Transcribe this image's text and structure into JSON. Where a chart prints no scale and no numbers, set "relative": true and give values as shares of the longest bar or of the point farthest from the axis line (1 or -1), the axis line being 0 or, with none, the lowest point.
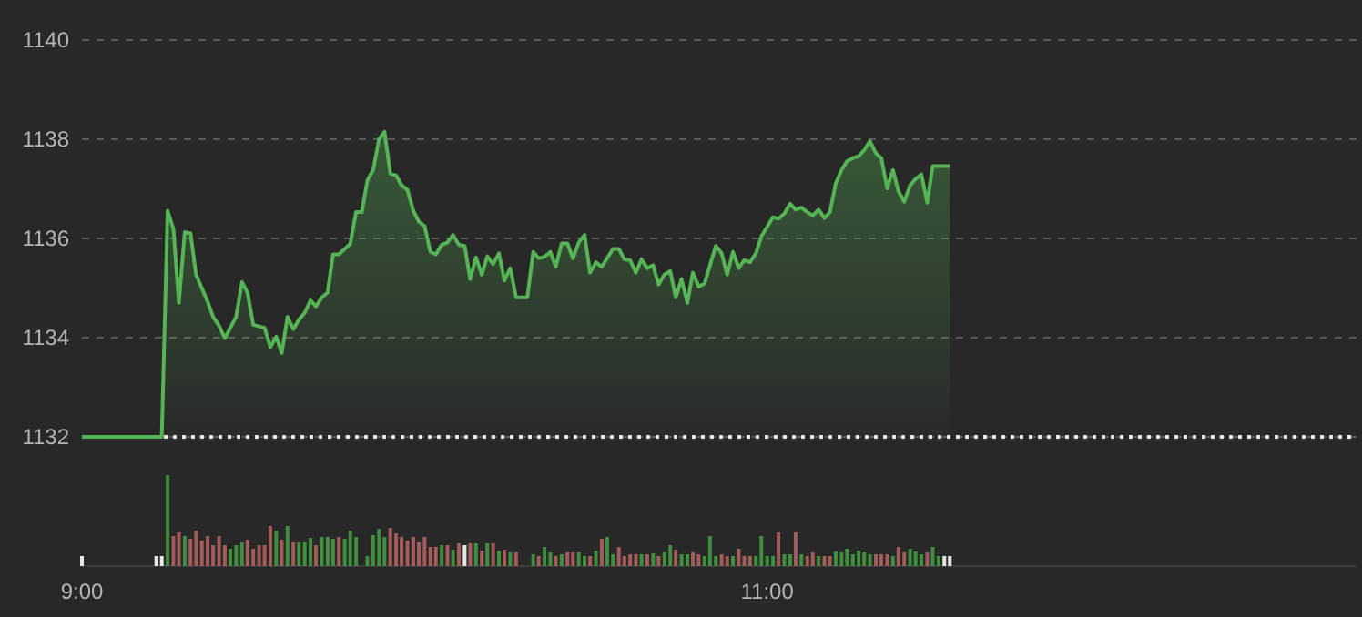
{
  "chart_data": [
    {
      "type": "area",
      "xlim": [
        9,
        12.72
      ],
      "ylim": [
        1132,
        1140
      ],
      "yticks": [
        1132,
        1134,
        1136,
        1138,
        1140
      ],
      "grid": "y",
      "tick_labels": "y",
      "color": "#55b555",
      "ref_lines": [
        {
          "axis": "y",
          "value": 1132,
          "color": "#e6e6e6",
          "line_style": "dotted"
        }
      ],
      "x": [
        9,
        9.233,
        9.25,
        9.267,
        9.283,
        9.3,
        9.317,
        9.333,
        9.367,
        9.383,
        9.4,
        9.417,
        9.45,
        9.467,
        9.483,
        9.5,
        9.533,
        9.55,
        9.567,
        9.583,
        9.6,
        9.617,
        9.633,
        9.65,
        9.667,
        9.683,
        9.7,
        9.717,
        9.733,
        9.75,
        9.783,
        9.8,
        9.817,
        9.833,
        9.85,
        9.867,
        9.883,
        9.9,
        9.917,
        9.933,
        9.95,
        9.967,
        9.983,
        10,
        10.017,
        10.033,
        10.05,
        10.067,
        10.083,
        10.1,
        10.117,
        10.133,
        10.15,
        10.167,
        10.183,
        10.2,
        10.217,
        10.233,
        10.25,
        10.267,
        10.3,
        10.317,
        10.333,
        10.35,
        10.367,
        10.383,
        10.4,
        10.417,
        10.433,
        10.45,
        10.467,
        10.483,
        10.5,
        10.517,
        10.55,
        10.567,
        10.583,
        10.6,
        10.617,
        10.633,
        10.65,
        10.667,
        10.683,
        10.7,
        10.717,
        10.733,
        10.75,
        10.767,
        10.783,
        10.8,
        10.817,
        10.85,
        10.867,
        10.883,
        10.9,
        10.917,
        10.933,
        10.95,
        10.967,
        10.983,
        11.017,
        11.033,
        11.05,
        11.067,
        11.083,
        11.1,
        11.117,
        11.133,
        11.15,
        11.167,
        11.183,
        11.2,
        11.217,
        11.233,
        11.25,
        11.267,
        11.283,
        11.3,
        11.317,
        11.333,
        11.35,
        11.367,
        11.383,
        11.4,
        11.417,
        11.433,
        11.45,
        11.467,
        11.483,
        11.533
      ],
      "values": [
        1132,
        1132,
        1136.56,
        1136.19,
        1134.7,
        1136.13,
        1136.1,
        1135.27,
        1134.72,
        1134.42,
        1134.24,
        1133.99,
        1134.42,
        1135.12,
        1134.91,
        1134.26,
        1134.2,
        1133.81,
        1134.02,
        1133.69,
        1134.42,
        1134.17,
        1134.36,
        1134.5,
        1134.75,
        1134.63,
        1134.81,
        1134.91,
        1135.68,
        1135.68,
        1135.89,
        1136.53,
        1136.53,
        1137.17,
        1137.38,
        1138,
        1138.15,
        1137.31,
        1137.27,
        1137.07,
        1136.98,
        1136.56,
        1136.34,
        1136.25,
        1135.73,
        1135.68,
        1135.87,
        1135.92,
        1136.07,
        1135.87,
        1135.85,
        1135.18,
        1135.62,
        1135.27,
        1135.64,
        1135.48,
        1135.7,
        1135.15,
        1135.4,
        1134.81,
        1134.81,
        1135.73,
        1135.6,
        1135.63,
        1135.73,
        1135.43,
        1135.9,
        1135.9,
        1135.6,
        1135.92,
        1136.07,
        1135.31,
        1135.52,
        1135.43,
        1135.79,
        1135.79,
        1135.58,
        1135.56,
        1135.31,
        1135.58,
        1135.4,
        1135.46,
        1135.07,
        1135.27,
        1135.34,
        1134.81,
        1135.18,
        1134.7,
        1135.31,
        1135.03,
        1135.09,
        1135.85,
        1135.7,
        1135.27,
        1135.73,
        1135.4,
        1135.56,
        1135.52,
        1135.7,
        1136.04,
        1136.43,
        1136.4,
        1136.5,
        1136.7,
        1136.58,
        1136.62,
        1136.53,
        1136.46,
        1136.58,
        1136.41,
        1136.53,
        1137.11,
        1137.38,
        1137.56,
        1137.62,
        1137.66,
        1137.78,
        1137.96,
        1137.72,
        1137.62,
        1137.01,
        1137.38,
        1136.95,
        1136.74,
        1137.07,
        1137.2,
        1137.29,
        1136.72,
        1137.46,
        1137.46
      ]
    },
    {
      "type": "bar",
      "relative": true,
      "xlim": [
        9,
        12.72
      ],
      "xticks": [
        {
          "value": 9,
          "label": "9:00"
        },
        {
          "value": 11,
          "label": "11:00"
        }
      ],
      "tick_labels": "x",
      "x": [
        9,
        9.217,
        9.233,
        9.25,
        9.267,
        9.283,
        9.3,
        9.317,
        9.333,
        9.35,
        9.367,
        9.383,
        9.4,
        9.417,
        9.433,
        9.45,
        9.467,
        9.483,
        9.5,
        9.517,
        9.533,
        9.55,
        9.567,
        9.583,
        9.6,
        9.617,
        9.633,
        9.65,
        9.667,
        9.683,
        9.7,
        9.717,
        9.733,
        9.75,
        9.767,
        9.783,
        9.8,
        9.833,
        9.85,
        9.867,
        9.883,
        9.9,
        9.917,
        9.933,
        9.95,
        9.967,
        9.983,
        10,
        10.017,
        10.033,
        10.05,
        10.067,
        10.083,
        10.1,
        10.117,
        10.133,
        10.15,
        10.167,
        10.183,
        10.2,
        10.217,
        10.233,
        10.25,
        10.267,
        10.317,
        10.333,
        10.35,
        10.367,
        10.383,
        10.4,
        10.417,
        10.433,
        10.45,
        10.467,
        10.483,
        10.5,
        10.517,
        10.533,
        10.55,
        10.567,
        10.583,
        10.6,
        10.617,
        10.633,
        10.65,
        10.667,
        10.683,
        10.7,
        10.717,
        10.733,
        10.75,
        10.767,
        10.783,
        10.8,
        10.817,
        10.833,
        10.85,
        10.867,
        10.883,
        10.9,
        10.917,
        10.933,
        10.95,
        10.967,
        10.983,
        11,
        11.017,
        11.033,
        11.05,
        11.067,
        11.083,
        11.1,
        11.117,
        11.133,
        11.15,
        11.167,
        11.183,
        11.2,
        11.217,
        11.233,
        11.25,
        11.267,
        11.283,
        11.3,
        11.317,
        11.333,
        11.35,
        11.367,
        11.383,
        11.4,
        11.417,
        11.433,
        11.45,
        11.467,
        11.483,
        11.5,
        11.517,
        11.533
      ],
      "values": [
        0.11,
        0.11,
        0.11,
        1,
        0.33,
        0.37,
        0.33,
        0.3,
        0.39,
        0.28,
        0.33,
        0.23,
        0.33,
        0.23,
        0.19,
        0.23,
        0.26,
        0.29,
        0.19,
        0.23,
        0.23,
        0.44,
        0.39,
        0.29,
        0.44,
        0.26,
        0.26,
        0.26,
        0.31,
        0.23,
        0.32,
        0.32,
        0.3,
        0.32,
        0.3,
        0.39,
        0.32,
        0.11,
        0.34,
        0.41,
        0.32,
        0.42,
        0.36,
        0.32,
        0.28,
        0.32,
        0.26,
        0.32,
        0.21,
        0.21,
        0.23,
        0.23,
        0.18,
        0.25,
        0.23,
        0.25,
        0.25,
        0.17,
        0.25,
        0.25,
        0.17,
        0.18,
        0.15,
        0.15,
        0.13,
        0.11,
        0.21,
        0.15,
        0.11,
        0.13,
        0.15,
        0.15,
        0.15,
        0.11,
        0.11,
        0.17,
        0.3,
        0.32,
        0.13,
        0.21,
        0.11,
        0.13,
        0.13,
        0.13,
        0.13,
        0.14,
        0.11,
        0.15,
        0.23,
        0.18,
        0.13,
        0.13,
        0.15,
        0.13,
        0.11,
        0.33,
        0.11,
        0.13,
        0.11,
        0.11,
        0.19,
        0.11,
        0.11,
        0.11,
        0.33,
        0.11,
        0.11,
        0.37,
        0.13,
        0.13,
        0.37,
        0.13,
        0.11,
        0.15,
        0.11,
        0.11,
        0.11,
        0.16,
        0.15,
        0.19,
        0.13,
        0.17,
        0.15,
        0.13,
        0.13,
        0.13,
        0.13,
        0.11,
        0.21,
        0.15,
        0.19,
        0.16,
        0.13,
        0.15,
        0.21,
        0.11,
        0.11,
        0.11
      ],
      "colors": [
        "#e6e6e6",
        "#e6e6e6",
        "#e6e6e6",
        "#3f8f3f",
        "#a35b5b",
        "#a35b5b",
        "#3f8f3f",
        "#a35b5b",
        "#a35b5b",
        "#a35b5b",
        "#a35b5b",
        "#a35b5b",
        "#a35b5b",
        "#a35b5b",
        "#3f8f3f",
        "#3f8f3f",
        "#3f8f3f",
        "#a35b5b",
        "#a35b5b",
        "#a35b5b",
        "#a35b5b",
        "#a35b5b",
        "#3f8f3f",
        "#a35b5b",
        "#3f8f3f",
        "#a35b5b",
        "#3f8f3f",
        "#3f8f3f",
        "#3f8f3f",
        "#a35b5b",
        "#3f8f3f",
        "#3f8f3f",
        "#3f8f3f",
        "#a35b5b",
        "#3f8f3f",
        "#3f8f3f",
        "#3f8f3f",
        "#3f8f3f",
        "#3f8f3f",
        "#3f8f3f",
        "#3f8f3f",
        "#a35b5b",
        "#a35b5b",
        "#a35b5b",
        "#a35b5b",
        "#a35b5b",
        "#a35b5b",
        "#a35b5b",
        "#a35b5b",
        "#a35b5b",
        "#3f8f3f",
        "#a35b5b",
        "#3f8f3f",
        "#a35b5b",
        "#e6e6e6",
        "#a35b5b",
        "#3f8f3f",
        "#a35b5b",
        "#3f8f3f",
        "#a35b5b",
        "#3f8f3f",
        "#a35b5b",
        "#3f8f3f",
        "#a35b5b",
        "#3f8f3f",
        "#a35b5b",
        "#3f8f3f",
        "#3f8f3f",
        "#a35b5b",
        "#3f8f3f",
        "#a35b5b",
        "#a35b5b",
        "#3f8f3f",
        "#3f8f3f",
        "#a35b5b",
        "#3f8f3f",
        "#a35b5b",
        "#3f8f3f",
        "#3f8f3f",
        "#a35b5b",
        "#a35b5b",
        "#a35b5b",
        "#a35b5b",
        "#3f8f3f",
        "#a35b5b",
        "#3f8f3f",
        "#a35b5b",
        "#3f8f3f",
        "#3f8f3f",
        "#a35b5b",
        "#3f8f3f",
        "#3f8f3f",
        "#a35b5b",
        "#a35b5b",
        "#3f8f3f",
        "#3f8f3f",
        "#3f8f3f",
        "#a35b5b",
        "#a35b5b",
        "#3f8f3f",
        "#a35b5b",
        "#a35b5b",
        "#a35b5b",
        "#3f8f3f",
        "#3f8f3f",
        "#3f8f3f",
        "#3f8f3f",
        "#a35b5b",
        "#3f8f3f",
        "#3f8f3f",
        "#a35b5b",
        "#3f8f3f",
        "#a35b5b",
        "#a35b5b",
        "#3f8f3f",
        "#a35b5b",
        "#a35b5b",
        "#3f8f3f",
        "#3f8f3f",
        "#3f8f3f",
        "#3f8f3f",
        "#3f8f3f",
        "#3f8f3f",
        "#3f8f3f",
        "#a35b5b",
        "#a35b5b",
        "#a35b5b",
        "#3f8f3f",
        "#a35b5b",
        "#a35b5b",
        "#3f8f3f",
        "#3f8f3f",
        "#3f8f3f",
        "#a35b5b",
        "#3f8f3f",
        "#3f8f3f",
        "#e6e6e6",
        "#e6e6e6"
      ]
    }
  ]
}
